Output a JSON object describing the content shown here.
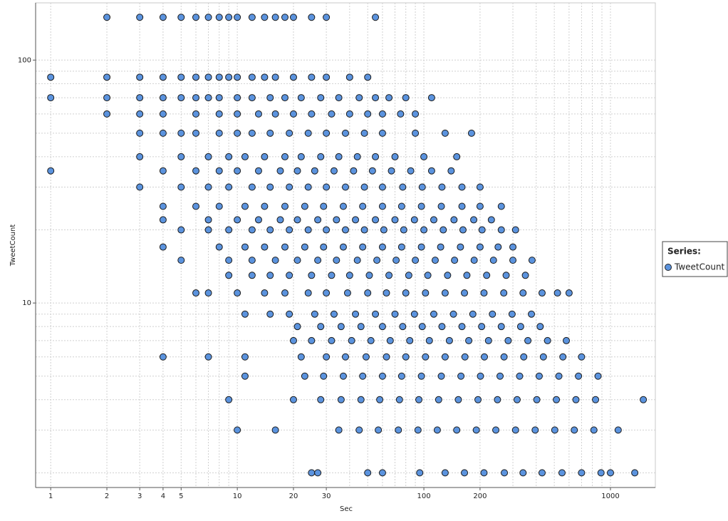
{
  "chart_data": {
    "type": "scatter",
    "x_label": "Sec",
    "y_label": "TweetCount",
    "legend_title": "Series:",
    "legend_position": "right",
    "log_x": true,
    "log_y": true,
    "grid": true,
    "xlim": [
      0.83,
      1740
    ],
    "ylim": [
      1.74,
      172
    ],
    "xticks": [
      1,
      2,
      3,
      4,
      5,
      10,
      20,
      30,
      100,
      200,
      1000
    ],
    "x_minor_ticks": [
      6,
      7,
      8,
      9,
      40,
      50,
      60,
      70,
      80,
      90,
      300,
      400,
      500,
      600,
      700,
      800,
      900
    ],
    "yticks": [
      10,
      100
    ],
    "y_minor_ticks": [
      2,
      3,
      4,
      5,
      6,
      7,
      8,
      9,
      20,
      30,
      40,
      50,
      60,
      70,
      80,
      90
    ],
    "x": [
      2,
      3,
      4,
      5,
      6,
      7,
      8,
      9,
      10,
      12,
      14,
      16,
      18,
      20,
      25,
      30,
      55,
      1,
      2,
      3,
      4,
      5,
      6,
      7,
      8,
      9,
      10,
      12,
      14,
      16,
      20,
      25,
      30,
      40,
      50,
      1,
      2,
      3,
      4,
      5,
      6,
      7,
      8,
      10,
      12,
      15,
      18,
      22,
      28,
      35,
      45,
      55,
      65,
      80,
      110,
      2,
      3,
      4,
      6,
      8,
      10,
      13,
      16,
      20,
      25,
      32,
      40,
      50,
      60,
      75,
      90,
      3,
      4,
      5,
      6,
      8,
      10,
      12,
      15,
      19,
      24,
      30,
      38,
      48,
      60,
      90,
      130,
      180,
      3,
      5,
      7,
      9,
      11,
      14,
      18,
      22,
      28,
      35,
      44,
      55,
      70,
      100,
      150,
      1,
      4,
      6,
      8,
      10,
      13,
      17,
      21,
      26,
      33,
      42,
      53,
      67,
      85,
      110,
      140,
      3,
      5,
      7,
      9,
      12,
      15,
      19,
      24,
      30,
      38,
      48,
      60,
      77,
      98,
      125,
      160,
      200,
      4,
      6,
      8,
      11,
      14,
      18,
      23,
      29,
      37,
      47,
      60,
      76,
      97,
      124,
      160,
      200,
      260,
      4,
      7,
      10,
      13,
      17,
      21,
      27,
      34,
      43,
      55,
      70,
      89,
      113,
      145,
      185,
      230,
      5,
      7,
      9,
      12,
      15,
      19,
      24,
      30,
      38,
      48,
      61,
      78,
      100,
      127,
      162,
      205,
      260,
      310,
      4,
      8,
      11,
      14,
      18,
      23,
      29,
      37,
      47,
      60,
      76,
      97,
      123,
      157,
      200,
      250,
      300,
      5,
      9,
      12,
      16,
      21,
      27,
      34,
      44,
      56,
      71,
      90,
      115,
      146,
      186,
      236,
      300,
      380,
      9,
      12,
      15,
      19,
      25,
      32,
      40,
      51,
      65,
      83,
      105,
      134,
      170,
      217,
      276,
      350,
      6,
      7,
      10,
      14,
      18,
      24,
      30,
      39,
      50,
      63,
      80,
      102,
      130,
      165,
      210,
      268,
      340,
      430,
      520,
      600,
      11,
      15,
      19,
      26,
      33,
      43,
      55,
      70,
      89,
      113,
      144,
      183,
      233,
      297,
      377,
      21,
      28,
      36,
      46,
      60,
      77,
      98,
      125,
      160,
      204,
      260,
      330,
      420,
      20,
      25,
      32,
      41,
      52,
      66,
      84,
      107,
      137,
      174,
      222,
      283,
      361,
      460,
      580,
      4,
      7,
      11,
      22,
      30,
      38,
      49,
      63,
      80,
      102,
      130,
      166,
      211,
      269,
      343,
      437,
      556,
      700,
      11,
      23,
      29,
      37,
      47,
      60,
      76,
      97,
      124,
      158,
      201,
      256,
      326,
      415,
      529,
      674,
      858,
      9,
      20,
      28,
      36,
      46,
      58,
      74,
      94,
      120,
      153,
      195,
      248,
      316,
      403,
      513,
      653,
      832,
      1500,
      10,
      16,
      35,
      45,
      57,
      73,
      93,
      118,
      150,
      191,
      243,
      310,
      395,
      503,
      640,
      815,
      1100,
      25,
      27,
      50,
      60,
      95,
      130,
      165,
      210,
      270,
      340,
      430,
      550,
      700,
      890,
      1000,
      1350
    ],
    "series": [
      {
        "name": "TweetCount",
        "color": "#5b93de",
        "values": [
          150,
          150,
          150,
          150,
          150,
          150,
          150,
          150,
          150,
          150,
          150,
          150,
          150,
          150,
          150,
          150,
          150,
          85,
          85,
          85,
          85,
          85,
          85,
          85,
          85,
          85,
          85,
          85,
          85,
          85,
          85,
          85,
          85,
          85,
          85,
          70,
          70,
          70,
          70,
          70,
          70,
          70,
          70,
          70,
          70,
          70,
          70,
          70,
          70,
          70,
          70,
          70,
          70,
          70,
          70,
          60,
          60,
          60,
          60,
          60,
          60,
          60,
          60,
          60,
          60,
          60,
          60,
          60,
          60,
          60,
          60,
          50,
          50,
          50,
          50,
          50,
          50,
          50,
          50,
          50,
          50,
          50,
          50,
          50,
          50,
          50,
          50,
          50,
          40,
          40,
          40,
          40,
          40,
          40,
          40,
          40,
          40,
          40,
          40,
          40,
          40,
          40,
          40,
          35,
          35,
          35,
          35,
          35,
          35,
          35,
          35,
          35,
          35,
          35,
          35,
          35,
          35,
          35,
          35,
          30,
          30,
          30,
          30,
          30,
          30,
          30,
          30,
          30,
          30,
          30,
          30,
          30,
          30,
          30,
          30,
          30,
          25,
          25,
          25,
          25,
          25,
          25,
          25,
          25,
          25,
          25,
          25,
          25,
          25,
          25,
          25,
          25,
          25,
          22,
          22,
          22,
          22,
          22,
          22,
          22,
          22,
          22,
          22,
          22,
          22,
          22,
          22,
          22,
          22,
          20,
          20,
          20,
          20,
          20,
          20,
          20,
          20,
          20,
          20,
          20,
          20,
          20,
          20,
          20,
          20,
          20,
          20,
          17,
          17,
          17,
          17,
          17,
          17,
          17,
          17,
          17,
          17,
          17,
          17,
          17,
          17,
          17,
          17,
          17,
          15,
          15,
          15,
          15,
          15,
          15,
          15,
          15,
          15,
          15,
          15,
          15,
          15,
          15,
          15,
          15,
          15,
          13,
          13,
          13,
          13,
          13,
          13,
          13,
          13,
          13,
          13,
          13,
          13,
          13,
          13,
          13,
          13,
          11,
          11,
          11,
          11,
          11,
          11,
          11,
          11,
          11,
          11,
          11,
          11,
          11,
          11,
          11,
          11,
          11,
          11,
          11,
          11,
          9,
          9,
          9,
          9,
          9,
          9,
          9,
          9,
          9,
          9,
          9,
          9,
          9,
          9,
          9,
          8,
          8,
          8,
          8,
          8,
          8,
          8,
          8,
          8,
          8,
          8,
          8,
          8,
          7,
          7,
          7,
          7,
          7,
          7,
          7,
          7,
          7,
          7,
          7,
          7,
          7,
          7,
          7,
          6,
          6,
          6,
          6,
          6,
          6,
          6,
          6,
          6,
          6,
          6,
          6,
          6,
          6,
          6,
          6,
          6,
          6,
          5,
          5,
          5,
          5,
          5,
          5,
          5,
          5,
          5,
          5,
          5,
          5,
          5,
          5,
          5,
          5,
          5,
          4,
          4,
          4,
          4,
          4,
          4,
          4,
          4,
          4,
          4,
          4,
          4,
          4,
          4,
          4,
          4,
          4,
          4,
          3,
          3,
          3,
          3,
          3,
          3,
          3,
          3,
          3,
          3,
          3,
          3,
          3,
          3,
          3,
          3,
          3,
          2,
          2,
          2,
          2,
          2,
          2,
          2,
          2,
          2,
          2,
          2,
          2,
          2,
          2,
          2,
          2
        ]
      }
    ]
  }
}
